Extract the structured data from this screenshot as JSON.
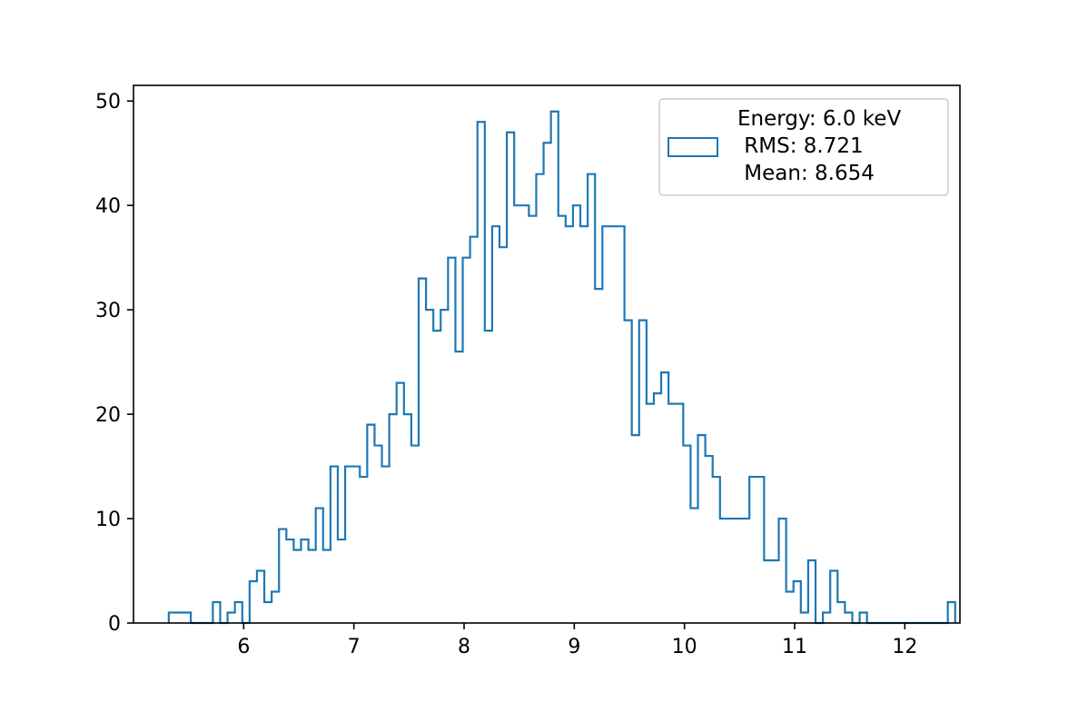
{
  "colors": {
    "series": "#1f77b4",
    "axes": "#000000",
    "legend_border": "#cccccc"
  },
  "chart_data": {
    "type": "histogram",
    "bin_start": 5.32,
    "bin_width": 0.0667,
    "counts": [
      1,
      1,
      1,
      0,
      0,
      0,
      2,
      0,
      1,
      2,
      0,
      4,
      5,
      2,
      3,
      9,
      8,
      7,
      8,
      7,
      11,
      7,
      15,
      8,
      15,
      15,
      14,
      19,
      17,
      15,
      20,
      23,
      20,
      17,
      33,
      30,
      28,
      30,
      35,
      26,
      35,
      37,
      48,
      28,
      38,
      36,
      47,
      40,
      40,
      39,
      43,
      46,
      49,
      39,
      38,
      40,
      38,
      43,
      32,
      38,
      38,
      38,
      29,
      18,
      29,
      21,
      22,
      24,
      21,
      21,
      17,
      11,
      18,
      16,
      14,
      10,
      10,
      10,
      10,
      14,
      14,
      6,
      6,
      10,
      3,
      4,
      1,
      6,
      0,
      1,
      5,
      2,
      1,
      0,
      1,
      0,
      0,
      0,
      0,
      0,
      0,
      0,
      0,
      0,
      0,
      0,
      2
    ],
    "xlim": [
      5.0,
      12.5
    ],
    "ylim": [
      0,
      51.5
    ],
    "xticks": [
      6,
      7,
      8,
      9,
      10,
      11,
      12
    ],
    "yticks": [
      0,
      10,
      20,
      30,
      40,
      50
    ],
    "grid": false,
    "legend": {
      "placement": "top-right",
      "lines": [
        "Energy: 6.0 keV",
        " RMS: 8.721",
        " Mean: 8.654"
      ]
    }
  }
}
